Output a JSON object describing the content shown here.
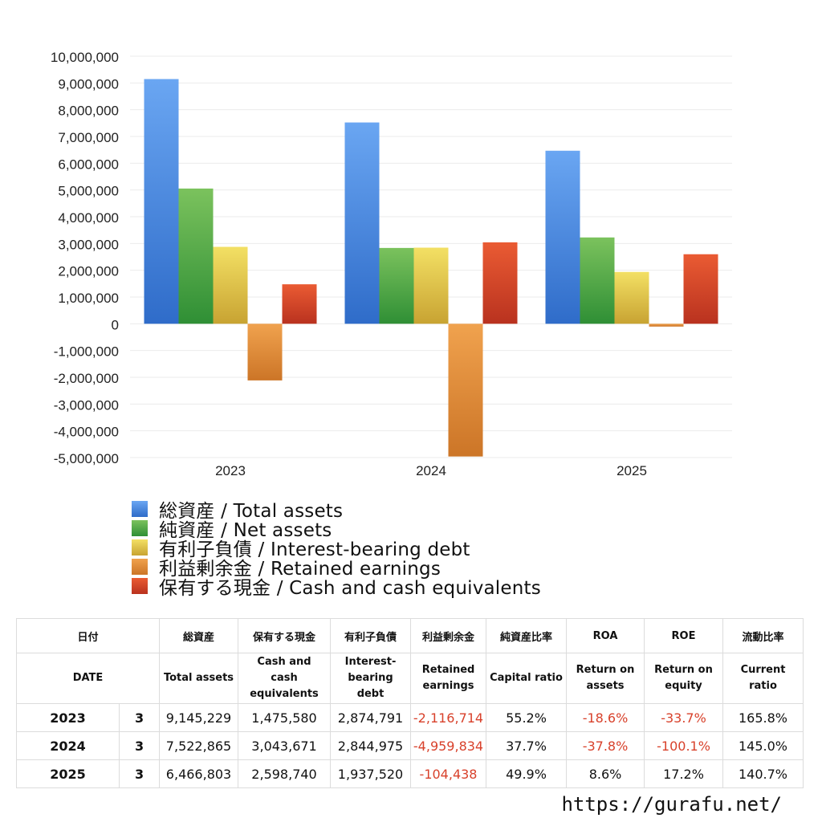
{
  "chart_data": {
    "type": "bar",
    "categories": [
      "2023",
      "2024",
      "2025"
    ],
    "series": [
      {
        "name": "総資産 / Total assets",
        "color": "#4a86e8",
        "values": [
          9145229,
          7522865,
          6466803
        ]
      },
      {
        "name": "純資産 / Net assets",
        "color": "#4ea84a",
        "values": [
          5054000,
          2834000,
          3226000
        ]
      },
      {
        "name": "有利子負債 / Interest-bearing debt",
        "color": "#e6c43a",
        "values": [
          2874791,
          2844975,
          1937520
        ]
      },
      {
        "name": "利益剰余金 / Retained earnings",
        "color": "#e08a3a",
        "values": [
          -2116714,
          -4959834,
          -104438
        ]
      },
      {
        "name": "保有する現金 /  Cash and cash equivalents",
        "color": "#d8452b",
        "values": [
          1475580,
          3043671,
          2598740
        ]
      }
    ],
    "ylim": [
      -5000000,
      10000000
    ],
    "yticks": [
      "10,000,000",
      "9,000,000",
      "8,000,000",
      "7,000,000",
      "6,000,000",
      "5,000,000",
      "4,000,000",
      "3,000,000",
      "2,000,000",
      "1,000,000",
      "0",
      "-1,000,000",
      "-2,000,000",
      "-3,000,000",
      "-4,000,000",
      "-5,000,000"
    ],
    "ytick_values": [
      10000000,
      9000000,
      8000000,
      7000000,
      6000000,
      5000000,
      4000000,
      3000000,
      2000000,
      1000000,
      0,
      -1000000,
      -2000000,
      -3000000,
      -4000000,
      -5000000
    ],
    "grid": true,
    "legend_position": "bottom"
  },
  "table": {
    "headers_jp": [
      "日付",
      "総資産",
      "保有する現金",
      "有利子負債",
      "利益剰余金",
      "純資産比率",
      "ROA",
      "ROE",
      "流動比率"
    ],
    "headers_en": [
      "DATE",
      "Total assets",
      "Cash and cash equivalents",
      "Interest-bearing debt",
      "Retained earnings",
      "Capital ratio",
      "Return on assets",
      "Return on equity",
      "Current ratio"
    ],
    "rows": [
      {
        "year": "2023",
        "month": "3",
        "total_assets": "9,145,229",
        "cash": "1,475,580",
        "debt": "2,874,791",
        "retained": "-2,116,714",
        "capital_ratio": "55.2%",
        "roa": "-18.6%",
        "roe": "-33.7%",
        "current_ratio": "165.8%"
      },
      {
        "year": "2024",
        "month": "3",
        "total_assets": "7,522,865",
        "cash": "3,043,671",
        "debt": "2,844,975",
        "retained": "-4,959,834",
        "capital_ratio": "37.7%",
        "roa": "-37.8%",
        "roe": "-100.1%",
        "current_ratio": "145.0%"
      },
      {
        "year": "2025",
        "month": "3",
        "total_assets": "6,466,803",
        "cash": "2,598,740",
        "debt": "1,937,520",
        "retained": "-104,438",
        "capital_ratio": "49.9%",
        "roa": "8.6%",
        "roe": "17.2%",
        "current_ratio": "140.7%"
      }
    ]
  },
  "footer": {
    "url": "https://gurafu.net/"
  },
  "colors": {
    "negative": "#d8412b"
  }
}
